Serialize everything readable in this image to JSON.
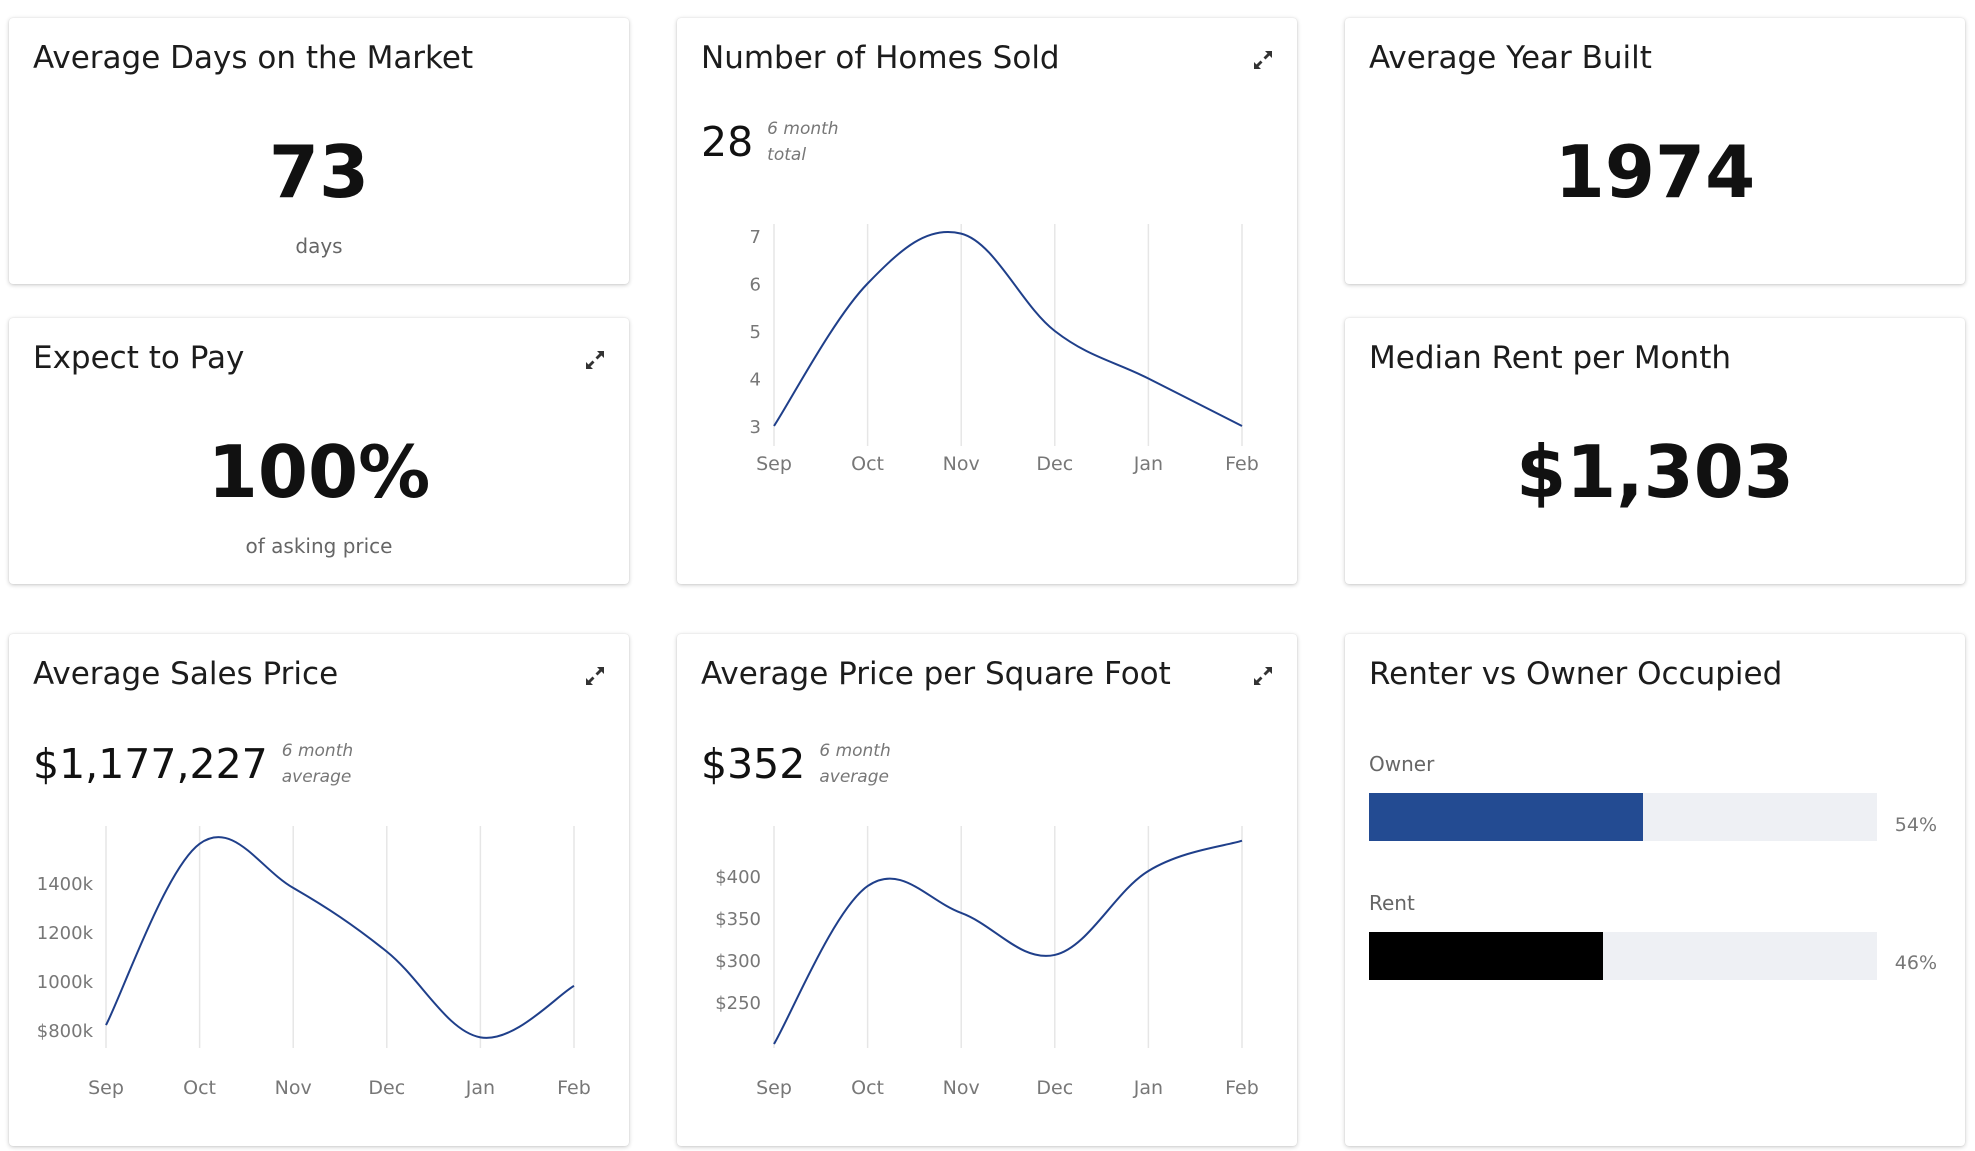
{
  "cards": {
    "days_on_market": {
      "title": "Average Days on the Market",
      "value": "73",
      "unit": "days"
    },
    "expect_to_pay": {
      "title": "Expect to Pay",
      "value": "100%",
      "unit": "of asking price"
    },
    "year_built": {
      "title": "Average Year Built",
      "value": "1974"
    },
    "median_rent": {
      "title": "Median Rent per Month",
      "value": "$1,303"
    },
    "homes_sold": {
      "title": "Number of Homes Sold",
      "value": "28",
      "note_line1": "6 month",
      "note_line2": "total"
    },
    "sales_price": {
      "title": "Average Sales Price",
      "value": "$1,177,227",
      "note_line1": "6 month",
      "note_line2": "average"
    },
    "price_sqft": {
      "title": "Average Price per Square Foot",
      "value": "$352",
      "note_line1": "6 month",
      "note_line2": "average"
    },
    "renter_owner": {
      "title": "Renter vs Owner Occupied"
    }
  },
  "icons": {
    "expand": "expand-arrows-icon"
  },
  "colors": {
    "line": "#1f3f8a",
    "owner_bar": "#234b92",
    "rent_bar": "#000000",
    "track": "#eef0f4",
    "grid": "#e6e6e6"
  },
  "chart_data": [
    {
      "id": "homes_sold",
      "type": "line",
      "title": "Number of Homes Sold",
      "categories": [
        "Sep",
        "Oct",
        "Nov",
        "Dec",
        "Jan",
        "Feb"
      ],
      "series": [
        {
          "values": [
            3,
            6,
            7.05,
            5,
            4,
            3
          ]
        }
      ],
      "yticks": [
        3,
        4,
        5,
        6,
        7
      ],
      "ytick_labels": [
        "3",
        "4",
        "5",
        "6",
        "7"
      ],
      "ylim": [
        3,
        7
      ],
      "grid": "vertical"
    },
    {
      "id": "sales_price",
      "type": "line",
      "title": "Average Sales Price",
      "categories": [
        "Sep",
        "Oct",
        "Nov",
        "Dec",
        "Jan",
        "Feb"
      ],
      "series": [
        {
          "values": [
            820000,
            1560000,
            1380000,
            1120000,
            770000,
            980000
          ]
        }
      ],
      "yticks": [
        800000,
        1000000,
        1200000,
        1400000
      ],
      "ytick_labels": [
        "$800k",
        "1000k",
        "1200k",
        "1400k"
      ],
      "ylim": [
        800000,
        1400000
      ],
      "grid": "vertical"
    },
    {
      "id": "price_sqft",
      "type": "line",
      "title": "Average Price per Square Foot",
      "categories": [
        "Sep",
        "Oct",
        "Nov",
        "Dec",
        "Jan",
        "Feb"
      ],
      "series": [
        {
          "values": [
            200,
            388,
            356,
            306,
            406,
            442
          ]
        }
      ],
      "yticks": [
        250,
        300,
        350,
        400
      ],
      "ytick_labels": [
        "$250",
        "$300",
        "$350",
        "$400"
      ],
      "ylim": [
        250,
        400
      ],
      "grid": "vertical"
    },
    {
      "id": "renter_owner",
      "type": "bar",
      "title": "Renter vs Owner Occupied",
      "categories": [
        "Owner",
        "Rent"
      ],
      "values": [
        54,
        46
      ],
      "value_labels": [
        "54%",
        "46%"
      ],
      "xlim": [
        0,
        100
      ]
    }
  ]
}
